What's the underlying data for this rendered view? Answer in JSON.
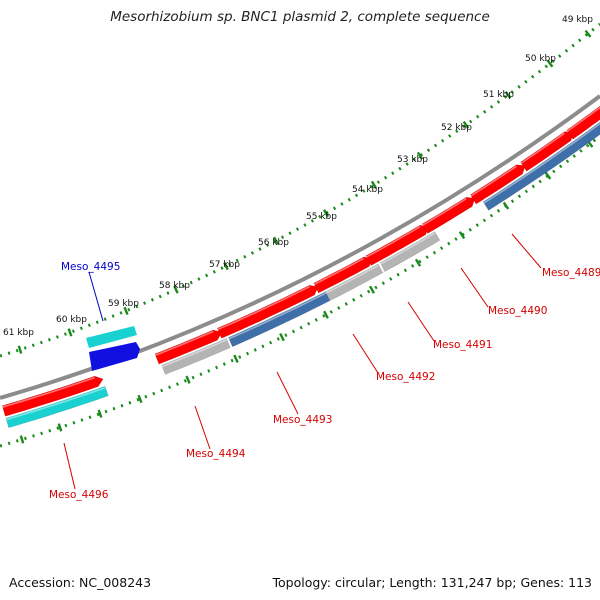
{
  "title": "Mesorhizobium sp. BNC1 plasmid 2, complete sequence",
  "footer": {
    "accession": "Accession: NC_008243",
    "summary": "Topology: circular; Length: 131,247 bp; Genes: 113"
  },
  "colors": {
    "backbone": "#8c8c8c",
    "ruler": "#1a8a1a",
    "forward_gene": "#ff0000",
    "cog_cyan": "#1ad1d1",
    "cog_blue": "#1010e0",
    "cog_grey": "#b4b4b4",
    "cog_steel": "#3f6fa8",
    "label_red": "#d40000",
    "label_blue": "#0000cc"
  },
  "ruler_labels": [
    "49 kbp",
    "50 kbp",
    "51 kbp",
    "52 kbp",
    "53 kbp",
    "54 kbp",
    "55 kbp",
    "56 kbp",
    "57 kbp",
    "58 kbp",
    "59 kbp",
    "60 kbp",
    "61 kbp"
  ],
  "gene_labels": [
    {
      "text": "Meso_4489",
      "color": "red"
    },
    {
      "text": "Meso_4490",
      "color": "red"
    },
    {
      "text": "Meso_4491",
      "color": "red"
    },
    {
      "text": "Meso_4492",
      "color": "red"
    },
    {
      "text": "Meso_4493",
      "color": "red"
    },
    {
      "text": "Meso_4494",
      "color": "red"
    },
    {
      "text": "Meso_4495",
      "color": "blue"
    },
    {
      "text": "Meso_4496",
      "color": "red"
    }
  ]
}
